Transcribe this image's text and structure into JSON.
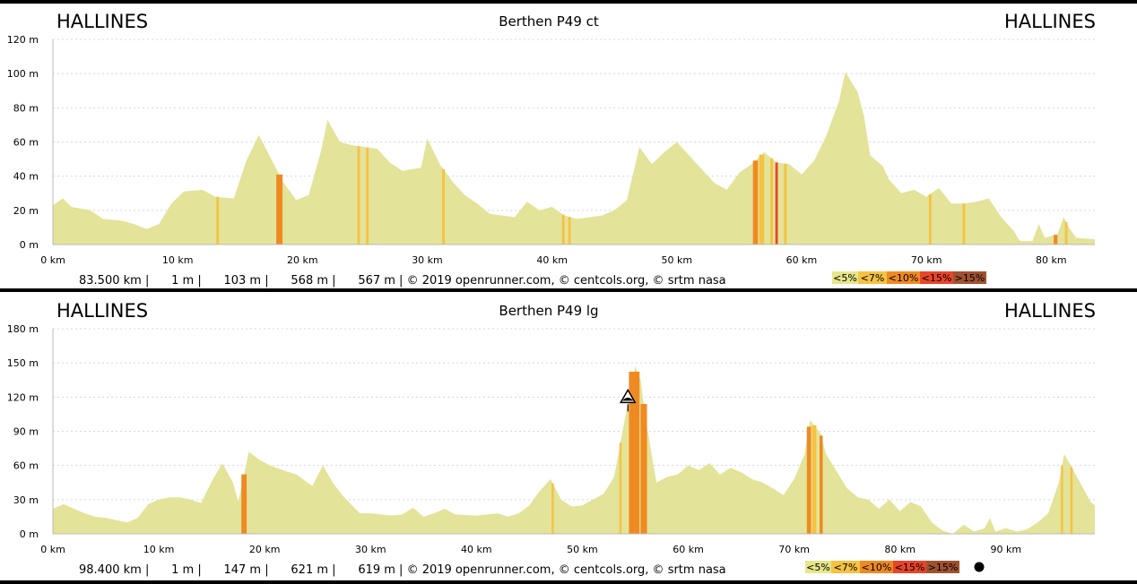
{
  "colors": {
    "frame": "#000000",
    "terrain": "#e3e399",
    "grades": [
      "#e6e68a",
      "#f5c242",
      "#ef8a22",
      "#e8452a",
      "#a05230"
    ]
  },
  "legend": {
    "labels": [
      "<5%",
      "<7%",
      "<10%",
      "<15%",
      ">15%"
    ]
  },
  "chart_data": [
    {
      "type": "area",
      "title": "Berthen P49 ct",
      "start_label": "HALLINES",
      "end_label": "HALLINES",
      "x_unit": "km",
      "y_unit": "m",
      "xlim": [
        0,
        83.5
      ],
      "ylim": [
        0,
        120
      ],
      "x_ticks": [
        0,
        10,
        20,
        30,
        40,
        50,
        60,
        70,
        80
      ],
      "y_ticks": [
        0,
        20,
        40,
        60,
        80,
        100,
        120
      ],
      "x_tick_labels": [
        "0 km",
        "10 km",
        "20 km",
        "30 km",
        "40 km",
        "50 km",
        "60 km",
        "70 km",
        "80 km"
      ],
      "y_tick_labels": [
        "0 m",
        "20 m",
        "40 m",
        "60 m",
        "80 m",
        "100 m",
        "120 m"
      ],
      "grid": true,
      "stats_text": "83.500 km |      1 m |      103 m |      568 m |      567 m | © 2019 openrunner.com, © centcols.org, © srtm nasa",
      "show_marker": false,
      "profile": [
        [
          0,
          23
        ],
        [
          0.8,
          27
        ],
        [
          1.5,
          22
        ],
        [
          3,
          20
        ],
        [
          4,
          15
        ],
        [
          5.5,
          14
        ],
        [
          6.5,
          12
        ],
        [
          7.5,
          9
        ],
        [
          8.5,
          12
        ],
        [
          9.5,
          24
        ],
        [
          10.5,
          31
        ],
        [
          12,
          32
        ],
        [
          13,
          28
        ],
        [
          14.5,
          27
        ],
        [
          15.5,
          49
        ],
        [
          16.5,
          64
        ],
        [
          17.5,
          50
        ],
        [
          18.5,
          36
        ],
        [
          19.5,
          26
        ],
        [
          20.5,
          29
        ],
        [
          21.5,
          55
        ],
        [
          22,
          73
        ],
        [
          23,
          60
        ],
        [
          24,
          58
        ],
        [
          26,
          56
        ],
        [
          27,
          48
        ],
        [
          28,
          43
        ],
        [
          29.5,
          45
        ],
        [
          30,
          62
        ],
        [
          31,
          47
        ],
        [
          32,
          37
        ],
        [
          33,
          29
        ],
        [
          34,
          24
        ],
        [
          35,
          18
        ],
        [
          36,
          17
        ],
        [
          37,
          16
        ],
        [
          38,
          25
        ],
        [
          39,
          20
        ],
        [
          40,
          22
        ],
        [
          41,
          17
        ],
        [
          42,
          15
        ],
        [
          44,
          17
        ],
        [
          45,
          20
        ],
        [
          46,
          26
        ],
        [
          47,
          57
        ],
        [
          48,
          47
        ],
        [
          49,
          54
        ],
        [
          50,
          60
        ],
        [
          51,
          52
        ],
        [
          52,
          44
        ],
        [
          53,
          36
        ],
        [
          54,
          32
        ],
        [
          55,
          42
        ],
        [
          56,
          47
        ],
        [
          57,
          54
        ],
        [
          58,
          48
        ],
        [
          59,
          47
        ],
        [
          60,
          41
        ],
        [
          61,
          49
        ],
        [
          62,
          64
        ],
        [
          63,
          84
        ],
        [
          63.5,
          101
        ],
        [
          64.5,
          89
        ],
        [
          65,
          75
        ],
        [
          65.5,
          52
        ],
        [
          66.5,
          46
        ],
        [
          67,
          38
        ],
        [
          68,
          30
        ],
        [
          69,
          32
        ],
        [
          70,
          28
        ],
        [
          71,
          33
        ],
        [
          72,
          24
        ],
        [
          73,
          24
        ],
        [
          74,
          25
        ],
        [
          75,
          27
        ],
        [
          76,
          16
        ],
        [
          77,
          8
        ],
        [
          77.5,
          2
        ],
        [
          78.5,
          2
        ],
        [
          79,
          12
        ],
        [
          79.5,
          4
        ],
        [
          80.5,
          6
        ],
        [
          81,
          16
        ],
        [
          81.5,
          9
        ],
        [
          82,
          4
        ],
        [
          83.5,
          3
        ]
      ],
      "grade_bands": [
        {
          "from": 13.1,
          "to": 13.3,
          "grade": 1
        },
        {
          "from": 17.9,
          "to": 18.4,
          "grade": 2
        },
        {
          "from": 24.4,
          "to": 24.6,
          "grade": 1
        },
        {
          "from": 25.1,
          "to": 25.3,
          "grade": 1
        },
        {
          "from": 31.2,
          "to": 31.4,
          "grade": 1
        },
        {
          "from": 40.8,
          "to": 41,
          "grade": 1
        },
        {
          "from": 41.3,
          "to": 41.5,
          "grade": 1
        },
        {
          "from": 56.1,
          "to": 56.5,
          "grade": 2
        },
        {
          "from": 56.6,
          "to": 57,
          "grade": 1
        },
        {
          "from": 57.5,
          "to": 57.7,
          "grade": 1
        },
        {
          "from": 57.9,
          "to": 58.1,
          "grade": 3
        },
        {
          "from": 58.6,
          "to": 58.8,
          "grade": 1
        },
        {
          "from": 70.2,
          "to": 70.4,
          "grade": 1
        },
        {
          "from": 72.9,
          "to": 73.1,
          "grade": 1
        },
        {
          "from": 80.2,
          "to": 80.5,
          "grade": 2
        },
        {
          "from": 81.1,
          "to": 81.3,
          "grade": 1
        }
      ]
    },
    {
      "type": "area",
      "title": "Berthen P49 lg",
      "start_label": "HALLINES",
      "end_label": "HALLINES",
      "x_unit": "km",
      "y_unit": "m",
      "xlim": [
        0,
        98.4
      ],
      "ylim": [
        0,
        180
      ],
      "x_ticks": [
        0,
        10,
        20,
        30,
        40,
        50,
        60,
        70,
        80,
        90
      ],
      "y_ticks": [
        0,
        30,
        60,
        90,
        120,
        150,
        180
      ],
      "x_tick_labels": [
        "0 km",
        "10 km",
        "20 km",
        "30 km",
        "40 km",
        "50 km",
        "60 km",
        "70 km",
        "80 km",
        "90 km"
      ],
      "y_tick_labels": [
        "0 m",
        "30 m",
        "60 m",
        "90 m",
        "120 m",
        "150 m",
        "180 m"
      ],
      "grid": true,
      "stats_text": "98.400 km |      1 m |      147 m |      621 m |      619 m | © 2019 openrunner.com, © centcols.org, © srtm nasa",
      "show_marker": true,
      "marker_x": 54.3,
      "marker_y": 120,
      "profile": [
        [
          0,
          22
        ],
        [
          1,
          26
        ],
        [
          2,
          22
        ],
        [
          3,
          18
        ],
        [
          4,
          15
        ],
        [
          5,
          14
        ],
        [
          6,
          12
        ],
        [
          7,
          10
        ],
        [
          8,
          14
        ],
        [
          9,
          26
        ],
        [
          10,
          30
        ],
        [
          11,
          32
        ],
        [
          12,
          32
        ],
        [
          13,
          30
        ],
        [
          14,
          27
        ],
        [
          15,
          46
        ],
        [
          16,
          62
        ],
        [
          17,
          45
        ],
        [
          17.5,
          28
        ],
        [
          18,
          50
        ],
        [
          18.5,
          72
        ],
        [
          19.5,
          65
        ],
        [
          20.5,
          60
        ],
        [
          22,
          55
        ],
        [
          23,
          52
        ],
        [
          24.5,
          42
        ],
        [
          25.5,
          60
        ],
        [
          26.5,
          44
        ],
        [
          27.5,
          32
        ],
        [
          29,
          18
        ],
        [
          30,
          18
        ],
        [
          32,
          16
        ],
        [
          33,
          17
        ],
        [
          34,
          23
        ],
        [
          35,
          15
        ],
        [
          36,
          18
        ],
        [
          37,
          22
        ],
        [
          38,
          17
        ],
        [
          40,
          16
        ],
        [
          41,
          17
        ],
        [
          42,
          18
        ],
        [
          43,
          15
        ],
        [
          44,
          18
        ],
        [
          45,
          25
        ],
        [
          46,
          38
        ],
        [
          47,
          48
        ],
        [
          48,
          30
        ],
        [
          49,
          24
        ],
        [
          50,
          25
        ],
        [
          51,
          30
        ],
        [
          52,
          35
        ],
        [
          53,
          50
        ],
        [
          54,
          100
        ],
        [
          55,
          147
        ],
        [
          55.5,
          135
        ],
        [
          56,
          100
        ],
        [
          57,
          45
        ],
        [
          58,
          50
        ],
        [
          59,
          52
        ],
        [
          60,
          60
        ],
        [
          61,
          56
        ],
        [
          62,
          62
        ],
        [
          63,
          52
        ],
        [
          64,
          58
        ],
        [
          65,
          54
        ],
        [
          66,
          48
        ],
        [
          67,
          45
        ],
        [
          68,
          40
        ],
        [
          69,
          34
        ],
        [
          70,
          48
        ],
        [
          71,
          70
        ],
        [
          71.5,
          100
        ],
        [
          72.5,
          88
        ],
        [
          73,
          70
        ],
        [
          74,
          55
        ],
        [
          75,
          40
        ],
        [
          76,
          32
        ],
        [
          77,
          30
        ],
        [
          78,
          22
        ],
        [
          79,
          30
        ],
        [
          80,
          20
        ],
        [
          81,
          28
        ],
        [
          82,
          24
        ],
        [
          83,
          10
        ],
        [
          84,
          3
        ],
        [
          85,
          0
        ],
        [
          86,
          8
        ],
        [
          87,
          2
        ],
        [
          88,
          5
        ],
        [
          88.5,
          14
        ],
        [
          89,
          2
        ],
        [
          90,
          5
        ],
        [
          91,
          2
        ],
        [
          92,
          4
        ],
        [
          93,
          10
        ],
        [
          94,
          18
        ],
        [
          95,
          45
        ],
        [
          95.5,
          70
        ],
        [
          96,
          62
        ],
        [
          97,
          45
        ],
        [
          98,
          28
        ],
        [
          98.4,
          25
        ]
      ],
      "grade_bands": [
        {
          "from": 17.8,
          "to": 18.3,
          "grade": 2
        },
        {
          "from": 47.1,
          "to": 47.3,
          "grade": 1
        },
        {
          "from": 53.5,
          "to": 53.7,
          "grade": 1
        },
        {
          "from": 54.4,
          "to": 55.4,
          "grade": 2
        },
        {
          "from": 55.5,
          "to": 56.1,
          "grade": 2
        },
        {
          "from": 71.2,
          "to": 71.6,
          "grade": 2
        },
        {
          "from": 71.7,
          "to": 72.1,
          "grade": 1
        },
        {
          "from": 72.4,
          "to": 72.7,
          "grade": 2
        },
        {
          "from": 95.2,
          "to": 95.4,
          "grade": 1
        },
        {
          "from": 96.1,
          "to": 96.3,
          "grade": 1
        }
      ]
    }
  ]
}
